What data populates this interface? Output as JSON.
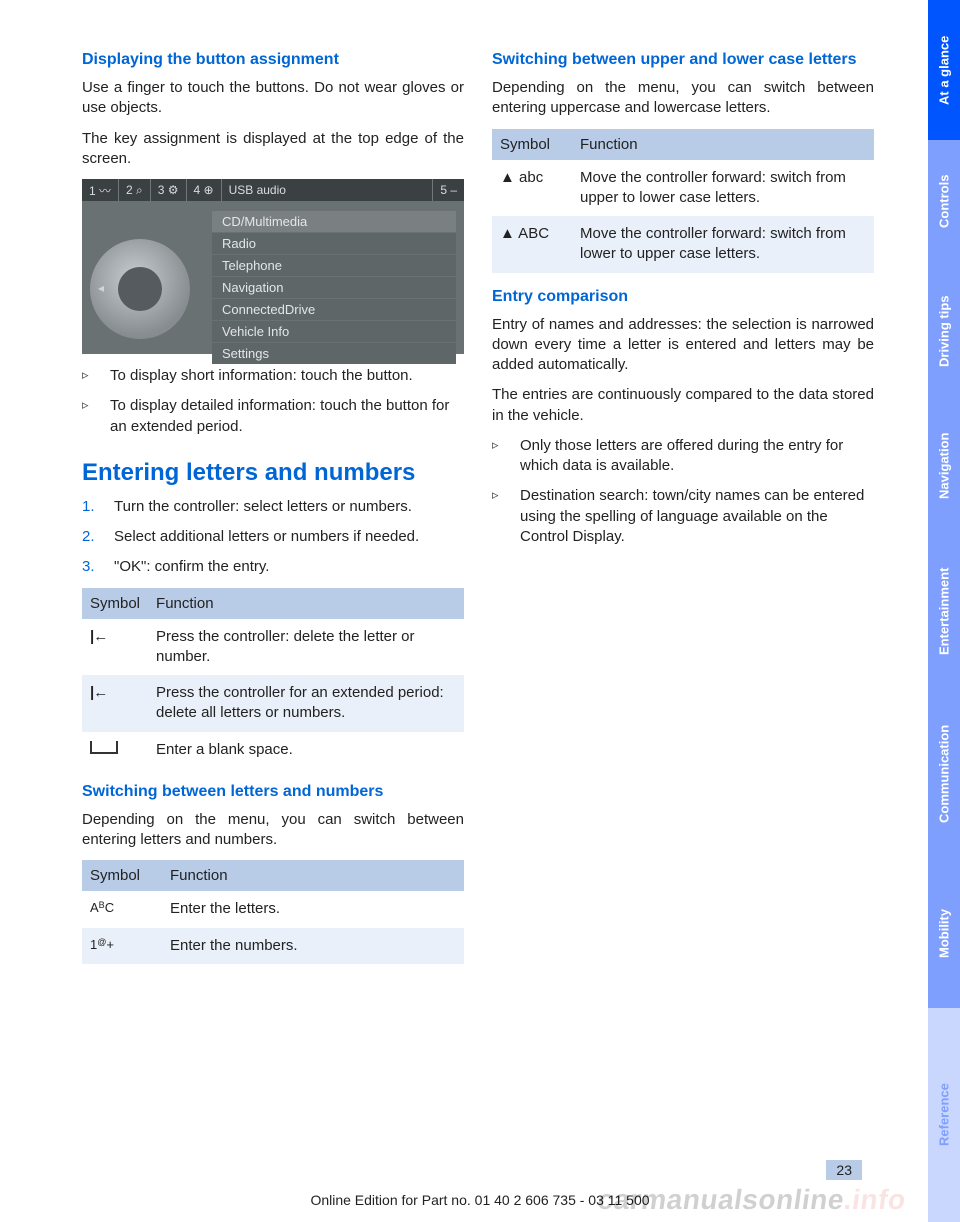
{
  "left": {
    "h_display": "Displaying the button assignment",
    "p_display_1": "Use a finger to touch the buttons. Do not wear gloves or use objects.",
    "p_display_2": "The key assignment is displayed at the top edge of the screen.",
    "shot": {
      "top_segs": [
        "1 〰",
        "2 ⌕",
        "3 ⚙",
        "4 ⊕",
        "USB audio"
      ],
      "top_right": "5 –",
      "menu": [
        "CD/Multimedia",
        "Radio",
        "Telephone",
        "Navigation",
        "ConnectedDrive",
        "Vehicle Info",
        "Settings"
      ]
    },
    "bul_display": [
      "To display short information: touch the button.",
      "To display detailed information: touch the button for an extended period."
    ],
    "h_enter": "Entering letters and numbers",
    "steps": [
      "Turn the controller: select letters or numbers.",
      "Select additional letters or numbers if needed.",
      "\"OK\": confirm the entry."
    ],
    "tbl1_head": [
      "Symbol",
      "Function"
    ],
    "tbl1_rows": [
      {
        "sym": "back",
        "txt": "Press the controller: delete the letter or number."
      },
      {
        "sym": "back",
        "txt": "Press the controller for an extended period: delete all letters or numbers."
      },
      {
        "sym": "space",
        "txt": "Enter a blank space."
      }
    ],
    "h_switch_ln": "Switching between letters and numbers",
    "p_switch_ln": "Depending on the menu, you can switch between entering letters and numbers.",
    "tbl2_head": [
      "Symbol",
      "Function"
    ],
    "tbl2_rows": [
      {
        "sym": "A<sup>B</sup>C",
        "txt": "Enter the letters."
      },
      {
        "sym": "1<sup>@</sup>+",
        "txt": "Enter the numbers."
      }
    ]
  },
  "right": {
    "h_case": "Switching between upper and lower case letters",
    "p_case": "Depending on the menu, you can switch between entering uppercase and lowercase letters.",
    "tbl3_head": [
      "Symbol",
      "Function"
    ],
    "tbl3_rows": [
      {
        "sym": "▲  abc",
        "txt": "Move the controller forward: switch from upper to lower case letters."
      },
      {
        "sym": "▲  ABC",
        "txt": "Move the controller forward: switch from lower to upper case letters."
      }
    ],
    "h_entry": "Entry comparison",
    "p_entry_1": "Entry of names and addresses: the selection is narrowed down every time a letter is entered and letters may be added automatically.",
    "p_entry_2": "The entries are continuously compared to the data stored in the vehicle.",
    "bul_entry": [
      "Only those letters are offered during the entry for which data is available.",
      "Destination search: town/city names can be entered using the spelling of language available on the Control Display."
    ]
  },
  "tabs": [
    "At a glance",
    "Controls",
    "Driving tips",
    "Navigation",
    "Entertainment",
    "Communication",
    "Mobility",
    "Reference"
  ],
  "page_number": "23",
  "edition": "Online Edition for Part no. 01 40 2 606 735 - 03 11 500",
  "watermark_a": "carmanualsonline",
  "watermark_b": ".info",
  "colors": {
    "heading_blue": "#0066d6",
    "table_header_bg": "#b8cce8",
    "table_alt_bg": "#eaf0fa",
    "tab_active": "#0055ff",
    "tab_inactive": "#7f9fff",
    "tab_muted": "#c9d7ff"
  }
}
